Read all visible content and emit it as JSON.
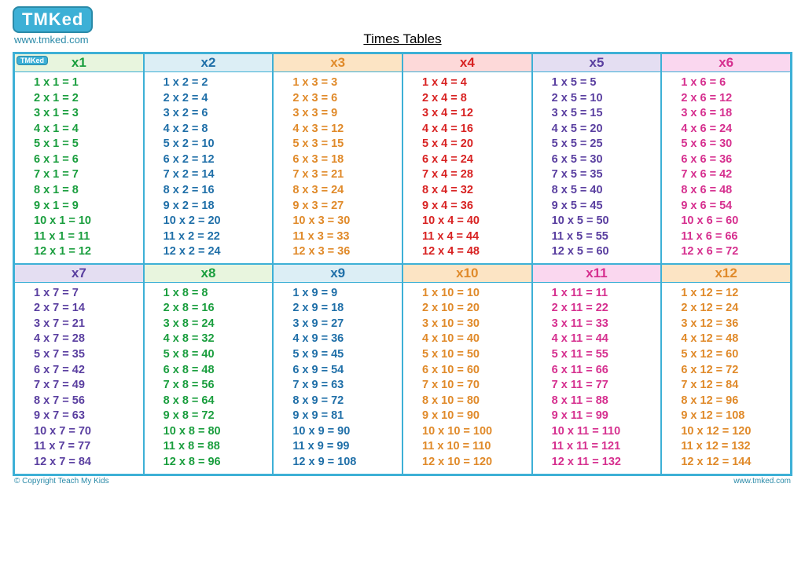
{
  "logo_text": "TMKed",
  "logo_url": "www.tmked.com",
  "title": "Times Tables",
  "footer_left": "© Copyright Teach My Kids",
  "footer_right": "www.tmked.com",
  "mini_logo": "TMKed",
  "tables": [
    {
      "label": "x1",
      "header_bg": "#e8f5de",
      "header_fg": "#1a9e3e",
      "text_color": "#1a9e3e",
      "n": 1
    },
    {
      "label": "x2",
      "header_bg": "#dceef5",
      "header_fg": "#1f6fa8",
      "text_color": "#1f6fa8",
      "n": 2
    },
    {
      "label": "x3",
      "header_bg": "#fce4c4",
      "header_fg": "#e08a2a",
      "text_color": "#e08a2a",
      "n": 3
    },
    {
      "label": "x4",
      "header_bg": "#fdd9d9",
      "header_fg": "#d82222",
      "text_color": "#d82222",
      "n": 4
    },
    {
      "label": "x5",
      "header_bg": "#e4def2",
      "header_fg": "#5a3fa0",
      "text_color": "#5a3fa0",
      "n": 5
    },
    {
      "label": "x6",
      "header_bg": "#fad7ef",
      "header_fg": "#d6308f",
      "text_color": "#d6308f",
      "n": 6
    },
    {
      "label": "x7",
      "header_bg": "#e4def2",
      "header_fg": "#5a3fa0",
      "text_color": "#5a3fa0",
      "n": 7
    },
    {
      "label": "x8",
      "header_bg": "#e8f5de",
      "header_fg": "#1a9e3e",
      "text_color": "#1a9e3e",
      "n": 8
    },
    {
      "label": "x9",
      "header_bg": "#dceef5",
      "header_fg": "#1f6fa8",
      "text_color": "#1f6fa8",
      "n": 9
    },
    {
      "label": "x10",
      "header_bg": "#fce4c4",
      "header_fg": "#e08a2a",
      "text_color": "#e08a2a",
      "n": 10
    },
    {
      "label": "x11",
      "header_bg": "#fad7ef",
      "header_fg": "#d6308f",
      "text_color": "#d6308f",
      "n": 11
    },
    {
      "label": "x12",
      "header_bg": "#fce4c4",
      "header_fg": "#e08a2a",
      "text_color": "#e08a2a",
      "n": 12
    }
  ],
  "multipliers": [
    1,
    2,
    3,
    4,
    5,
    6,
    7,
    8,
    9,
    10,
    11,
    12
  ]
}
